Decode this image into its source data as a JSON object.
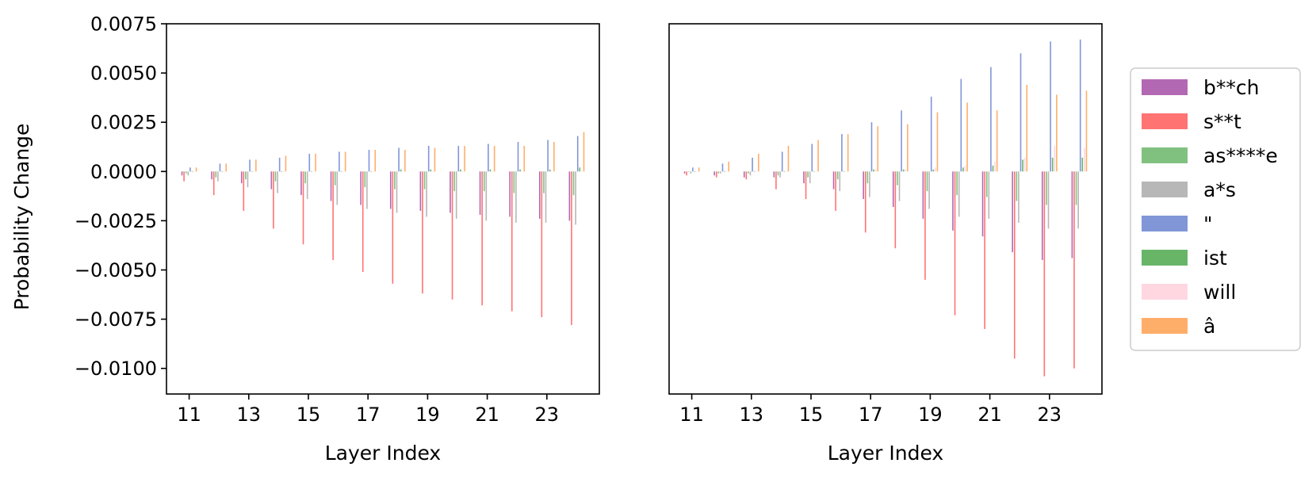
{
  "chart_data": [
    {
      "type": "bar",
      "title": "",
      "xlabel": "Layer Index",
      "ylabel": "Probability Change",
      "ylim": [
        -0.0113,
        0.0075
      ],
      "yticks": [
        0.0075,
        0.005,
        0.0025,
        0.0,
        -0.0025,
        -0.005,
        -0.0075,
        -0.01
      ],
      "ytick_labels": [
        "0.0075",
        "0.0050",
        "0.0025",
        "0.0000",
        "−0.0025",
        "−0.0050",
        "−0.0075",
        "−0.0100"
      ],
      "xtick_labels": [
        "11",
        "13",
        "15",
        "17",
        "19",
        "21",
        "23"
      ],
      "categories": [
        11,
        12,
        13,
        14,
        15,
        16,
        17,
        18,
        19,
        20,
        21,
        22,
        23,
        24
      ],
      "grid": false,
      "series": [
        {
          "name": "b**ch",
          "color": "#a64ea6",
          "values": [
            -0.0002,
            -0.0004,
            -0.0006,
            -0.0009,
            -0.0012,
            -0.0015,
            -0.0017,
            -0.0019,
            -0.002,
            -0.0021,
            -0.0022,
            -0.0023,
            -0.0024,
            -0.0025
          ]
        },
        {
          "name": "s**t",
          "color": "#ff5a5a",
          "values": [
            -0.0005,
            -0.0012,
            -0.002,
            -0.0029,
            -0.0037,
            -0.0045,
            -0.0051,
            -0.0057,
            -0.0062,
            -0.0065,
            -0.0068,
            -0.0071,
            -0.0074,
            -0.0078
          ]
        },
        {
          "name": "as****e",
          "color": "#6ab66a",
          "values": [
            -0.0001,
            -0.0003,
            -0.0004,
            -0.0005,
            -0.0006,
            -0.0007,
            -0.0008,
            -0.0009,
            -0.0009,
            -0.001,
            -0.001,
            -0.0011,
            -0.0011,
            -0.0012
          ]
        },
        {
          "name": "a*s",
          "color": "#aaaaaa",
          "values": [
            -0.0002,
            -0.0005,
            -0.0008,
            -0.0011,
            -0.0014,
            -0.0017,
            -0.0019,
            -0.0021,
            -0.0023,
            -0.0024,
            -0.0025,
            -0.0026,
            -0.0026,
            -0.0027
          ]
        },
        {
          "name": "\"",
          "color": "#6a84d0",
          "values": [
            0.0002,
            0.0004,
            0.0006,
            0.0007,
            0.0009,
            0.001,
            0.0011,
            0.0012,
            0.0013,
            0.0013,
            0.0014,
            0.0015,
            0.0016,
            0.0018
          ]
        },
        {
          "name": "ist",
          "color": "#4ea84e",
          "values": [
            0.0,
            0.0,
            0.0,
            0.0,
            0.0,
            0.0,
            0.0,
            0.0001,
            0.0001,
            0.0001,
            0.0001,
            0.0001,
            0.0001,
            0.0002
          ]
        },
        {
          "name": "will",
          "color": "#ffd0dc",
          "values": [
            0.0,
            0.0,
            0.0,
            0.0,
            0.0,
            0.0,
            0.0,
            0.0,
            0.0,
            0.0,
            0.0,
            0.0,
            0.0,
            0.0
          ]
        },
        {
          "name": "â",
          "color": "#ffa050",
          "values": [
            0.0002,
            0.0004,
            0.0006,
            0.0008,
            0.0009,
            0.001,
            0.0011,
            0.0011,
            0.0012,
            0.0013,
            0.0013,
            0.0013,
            0.0015,
            0.002
          ]
        }
      ]
    },
    {
      "type": "bar",
      "title": "",
      "xlabel": "Layer Index",
      "ylabel": "",
      "ylim": [
        -0.0113,
        0.0075
      ],
      "xtick_labels": [
        "11",
        "13",
        "15",
        "17",
        "19",
        "21",
        "23"
      ],
      "categories": [
        11,
        12,
        13,
        14,
        15,
        16,
        17,
        18,
        19,
        20,
        21,
        22,
        23,
        24
      ],
      "grid": false,
      "series": [
        {
          "name": "b**ch",
          "color": "#a64ea6",
          "values": [
            -0.0001,
            -0.0002,
            -0.0003,
            -0.0003,
            -0.0006,
            -0.0009,
            -0.0014,
            -0.0018,
            -0.0024,
            -0.003,
            -0.0033,
            -0.0041,
            -0.0045,
            -0.0044
          ]
        },
        {
          "name": "s**t",
          "color": "#ff5a5a",
          "values": [
            -0.0002,
            -0.0003,
            -0.0004,
            -0.0009,
            -0.0014,
            -0.002,
            -0.0031,
            -0.0039,
            -0.0055,
            -0.0073,
            -0.008,
            -0.0095,
            -0.0104,
            -0.01
          ]
        },
        {
          "name": "as****e",
          "color": "#6ab66a",
          "values": [
            0.0,
            -0.0001,
            -0.0001,
            -0.0002,
            -0.0003,
            -0.0004,
            -0.0006,
            -0.0007,
            -0.001,
            -0.0012,
            -0.0013,
            -0.0015,
            -0.0017,
            -0.0017
          ]
        },
        {
          "name": "a*s",
          "color": "#aaaaaa",
          "values": [
            -0.0001,
            -0.0001,
            -0.0002,
            -0.0003,
            -0.0006,
            -0.001,
            -0.0013,
            -0.0015,
            -0.0019,
            -0.0023,
            -0.0024,
            -0.0026,
            -0.0029,
            -0.0029
          ]
        },
        {
          "name": "\"",
          "color": "#6a84d0",
          "values": [
            0.0002,
            0.0004,
            0.0007,
            0.001,
            0.0014,
            0.0019,
            0.0025,
            0.0031,
            0.0038,
            0.0047,
            0.0053,
            0.006,
            0.0066,
            0.0067
          ]
        },
        {
          "name": "ist",
          "color": "#4ea84e",
          "values": [
            0.0,
            0.0,
            0.0,
            0.0,
            0.0,
            0.0,
            0.0001,
            0.0001,
            0.0001,
            0.0002,
            0.0003,
            0.0006,
            0.0007,
            0.0007
          ]
        },
        {
          "name": "will",
          "color": "#ffd0dc",
          "values": [
            0.0,
            0.0,
            0.0,
            0.0,
            0.0,
            0.0,
            0.0001,
            0.0001,
            0.0002,
            0.0003,
            0.0005,
            0.0007,
            0.0013,
            0.0012
          ]
        },
        {
          "name": "â",
          "color": "#ffa050",
          "values": [
            0.0002,
            0.0005,
            0.0009,
            0.0013,
            0.0016,
            0.0019,
            0.0023,
            0.0024,
            0.003,
            0.0035,
            0.0031,
            0.0044,
            0.0039,
            0.0041
          ]
        }
      ]
    }
  ],
  "legend": {
    "placement": "right",
    "entries": [
      {
        "name": "b**ch",
        "color": "#a64ea6"
      },
      {
        "name": "s**t",
        "color": "#ff5a5a"
      },
      {
        "name": "as****e",
        "color": "#6ab66a"
      },
      {
        "name": "a*s",
        "color": "#aaaaaa"
      },
      {
        "name": "\"",
        "color": "#6a84d0"
      },
      {
        "name": "ist",
        "color": "#4ea84e"
      },
      {
        "name": "will",
        "color": "#ffd0dc"
      },
      {
        "name": "â",
        "color": "#ffa050"
      }
    ]
  }
}
